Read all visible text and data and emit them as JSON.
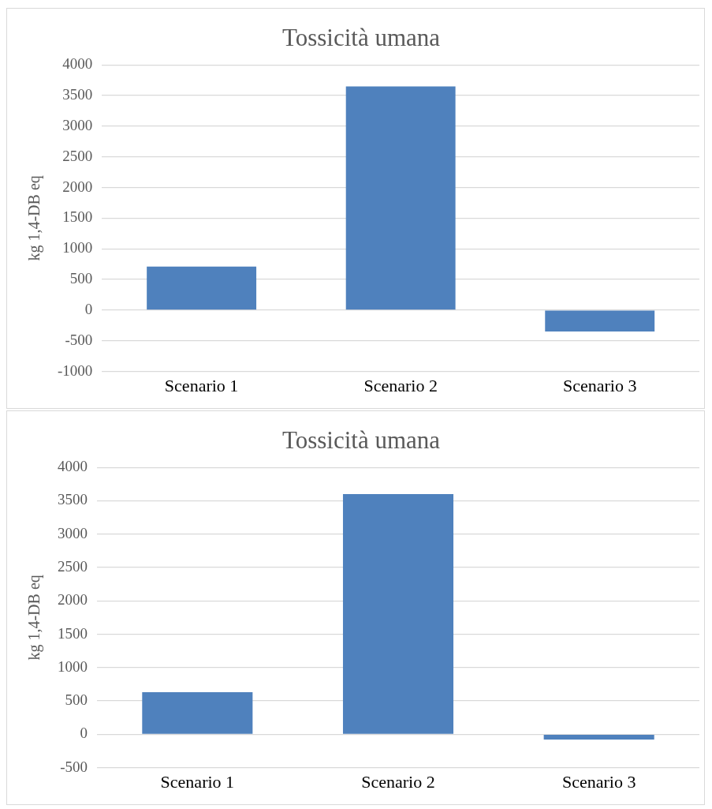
{
  "chart_data": [
    {
      "type": "bar",
      "title": "Tossicità umana",
      "ylabel": "kg 1,4-DB eq",
      "categories": [
        "Scenario 1",
        "Scenario 2",
        "Scenario 3"
      ],
      "values": [
        710,
        3650,
        -350
      ],
      "color": "#4f81bd",
      "ylim": [
        -1000,
        4000
      ],
      "yticks": [
        -1000,
        -500,
        0,
        500,
        1000,
        1500,
        2000,
        2500,
        3000,
        3500,
        4000
      ],
      "grid": "y",
      "legend": false
    },
    {
      "type": "bar",
      "title": "Tossicità umana",
      "ylabel": "kg 1,4-DB eq",
      "categories": [
        "Scenario 1",
        "Scenario 2",
        "Scenario 3"
      ],
      "values": [
        630,
        3600,
        -80
      ],
      "color": "#4f81bd",
      "ylim": [
        -500,
        4000
      ],
      "yticks": [
        -500,
        0,
        500,
        1000,
        1500,
        2000,
        2500,
        3000,
        3500,
        4000
      ],
      "grid": "y",
      "legend": false
    }
  ]
}
